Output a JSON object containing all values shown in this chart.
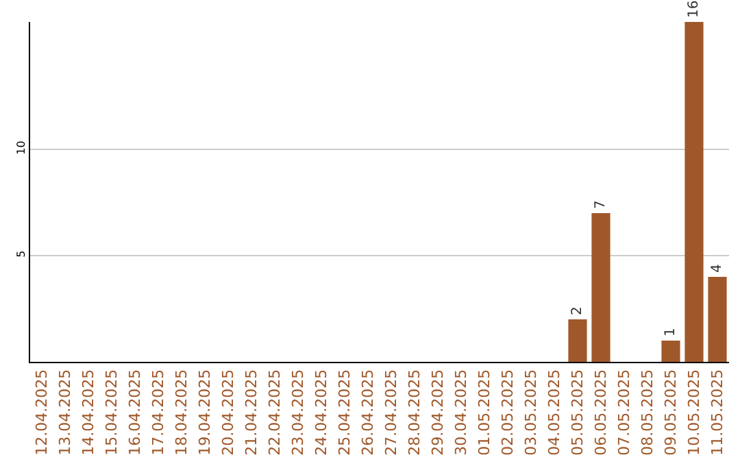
{
  "chart_data": {
    "type": "bar",
    "categories": [
      "12.04.2025",
      "13.04.2025",
      "14.04.2025",
      "15.04.2025",
      "16.04.2025",
      "17.04.2025",
      "18.04.2025",
      "19.04.2025",
      "20.04.2025",
      "21.04.2025",
      "22.04.2025",
      "23.04.2025",
      "24.04.2025",
      "25.04.2025",
      "26.04.2025",
      "27.04.2025",
      "28.04.2025",
      "29.04.2025",
      "30.04.2025",
      "01.05.2025",
      "02.05.2025",
      "03.05.2025",
      "04.05.2025",
      "05.05.2025",
      "06.05.2025",
      "07.05.2025",
      "08.05.2025",
      "09.05.2025",
      "10.05.2025",
      "11.05.2025"
    ],
    "values": [
      0,
      0,
      0,
      0,
      0,
      0,
      0,
      0,
      0,
      0,
      0,
      0,
      0,
      0,
      0,
      0,
      0,
      0,
      0,
      0,
      0,
      0,
      0,
      2,
      7,
      0,
      0,
      1,
      16,
      4
    ],
    "value_labels": [
      null,
      null,
      null,
      null,
      null,
      null,
      null,
      null,
      null,
      null,
      null,
      null,
      null,
      null,
      null,
      null,
      null,
      null,
      null,
      null,
      null,
      null,
      null,
      "2",
      "7",
      null,
      null,
      "1",
      "16",
      "4"
    ],
    "color": "#a0582a",
    "ylim": [
      0,
      16
    ],
    "yticks": [
      5,
      10
    ],
    "grid": "y",
    "legend": false
  }
}
